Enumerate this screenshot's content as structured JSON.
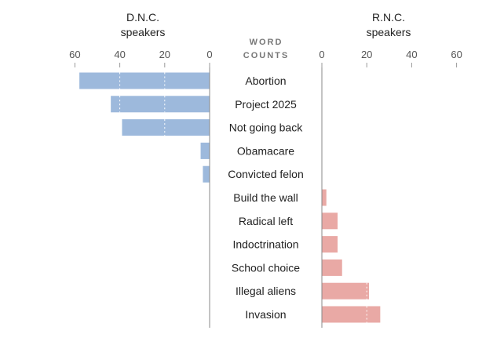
{
  "chart_data": {
    "type": "bar",
    "center_label": [
      "WORD",
      "COUNTS"
    ],
    "categories": [
      "Abortion",
      "Project 2025",
      "Not going back",
      "Obamacare",
      "Convicted felon",
      "Build the wall",
      "Radical left",
      "Indoctrination",
      "School choice",
      "Illegal aliens",
      "Invasion"
    ],
    "series": [
      {
        "name": "D.N.C. speakers",
        "title_lines": [
          "D.N.C.",
          "speakers"
        ],
        "color": "#9db9dc",
        "ticks": [
          60,
          40,
          20,
          0
        ],
        "xlim": [
          0,
          60
        ],
        "values": [
          58,
          44,
          39,
          4,
          3,
          0,
          0,
          0,
          0,
          0,
          0
        ]
      },
      {
        "name": "R.N.C. speakers",
        "title_lines": [
          "R.N.C.",
          "speakers"
        ],
        "color": "#e9a9a5",
        "ticks": [
          0,
          20,
          40,
          60
        ],
        "xlim": [
          0,
          60
        ],
        "values": [
          0,
          0,
          0,
          0,
          0,
          2,
          7,
          7,
          9,
          21,
          26
        ]
      }
    ]
  }
}
